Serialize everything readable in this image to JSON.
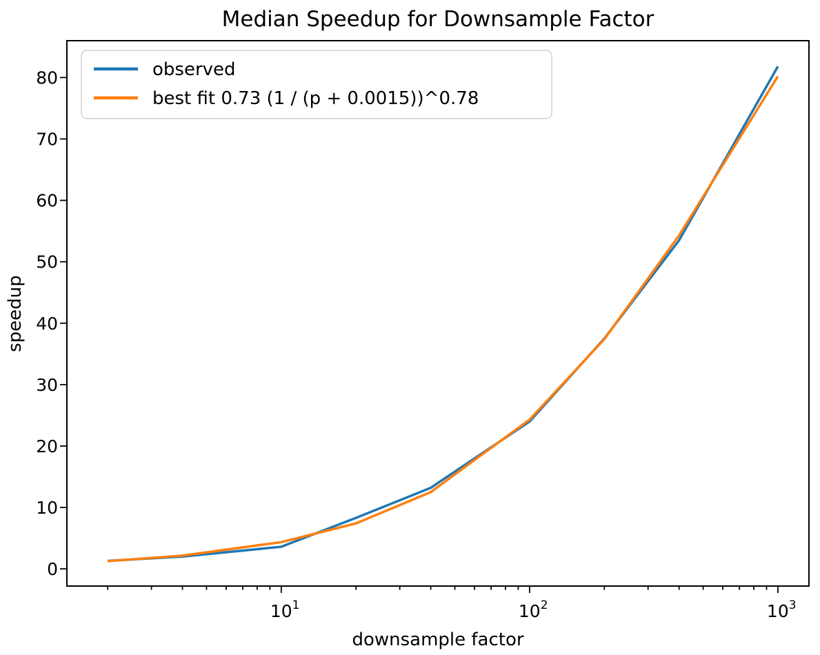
{
  "chart_data": {
    "type": "line",
    "title": "Median Speedup for Downsample Factor",
    "xlabel": "downsample factor",
    "ylabel": "speedup",
    "x_scale": "log",
    "grid": false,
    "legend_position": "upper left",
    "x": [
      2,
      4,
      10,
      20,
      40,
      100,
      200,
      400,
      1000
    ],
    "series": [
      {
        "name": "observed",
        "color": "#1f77b4",
        "values": [
          1.3,
          2.0,
          3.6,
          8.3,
          13.2,
          24.0,
          37.5,
          53.5,
          81.8
        ]
      },
      {
        "name": "best fit 0.73 (1 / (p + 0.0015))^0.78",
        "color": "#ff7f0e",
        "values": [
          1.25,
          2.15,
          4.35,
          7.4,
          12.5,
          24.3,
          37.4,
          54.3,
          80.2
        ]
      }
    ],
    "xlim": [
      1.37,
      1334
    ],
    "ylim": [
      -2.8,
      86
    ],
    "x_major_ticks": [
      10,
      100,
      1000
    ],
    "x_major_tick_exponents": [
      1,
      2,
      3
    ],
    "y_ticks": [
      0,
      10,
      20,
      30,
      40,
      50,
      60,
      70,
      80
    ]
  }
}
